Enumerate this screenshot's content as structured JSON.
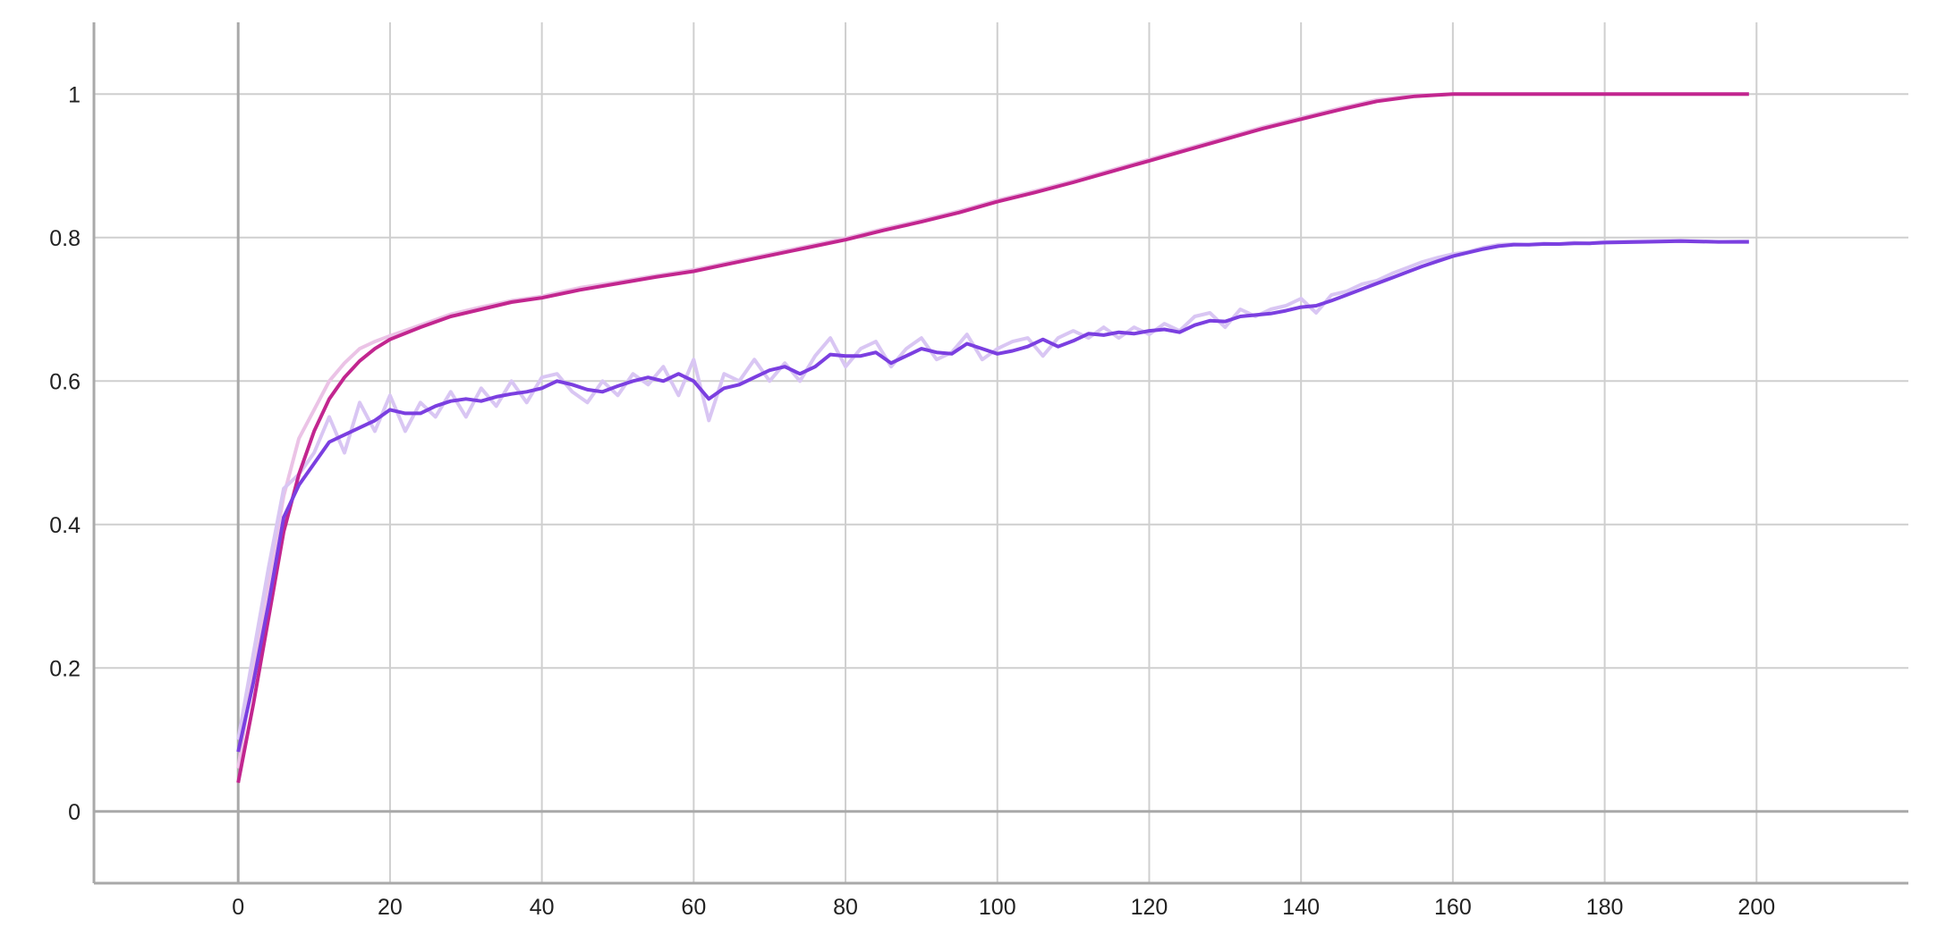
{
  "chart_data": {
    "type": "line",
    "title": "",
    "xlabel": "",
    "ylabel": "",
    "xlim": [
      -19,
      220
    ],
    "ylim": [
      -0.1,
      1.1
    ],
    "xticks": [
      0,
      20,
      40,
      60,
      80,
      100,
      120,
      140,
      160,
      180,
      200
    ],
    "xtick_labels": [
      "0",
      "20",
      "40",
      "60",
      "80",
      "100",
      "120",
      "140",
      "160",
      "180",
      "200"
    ],
    "yticks": [
      0,
      0.2,
      0.4,
      0.6,
      0.8,
      1
    ],
    "ytick_labels": [
      "0",
      "0.2",
      "0.4",
      "0.6",
      "0.8",
      "1"
    ],
    "grid": true,
    "legend": "none",
    "series": [
      {
        "color": "#c2268f",
        "raw_color": "#ebc3e6",
        "x": [
          0,
          2,
          4,
          6,
          8,
          10,
          12,
          14,
          16,
          18,
          20,
          24,
          28,
          32,
          36,
          40,
          45,
          50,
          55,
          60,
          65,
          70,
          75,
          80,
          85,
          90,
          95,
          100,
          105,
          110,
          115,
          120,
          125,
          130,
          135,
          140,
          145,
          150,
          155,
          160,
          165,
          170,
          180,
          190,
          199
        ],
        "y": [
          0.04,
          0.15,
          0.27,
          0.39,
          0.47,
          0.53,
          0.575,
          0.605,
          0.628,
          0.645,
          0.658,
          0.675,
          0.69,
          0.7,
          0.71,
          0.716,
          0.727,
          0.736,
          0.745,
          0.753,
          0.764,
          0.775,
          0.786,
          0.797,
          0.81,
          0.822,
          0.835,
          0.85,
          0.863,
          0.877,
          0.892,
          0.907,
          0.922,
          0.937,
          0.952,
          0.965,
          0.978,
          0.99,
          0.997,
          1.0,
          1.0,
          1.0,
          1.0,
          1.0,
          1.0
        ],
        "raw_y": [
          0.06,
          0.2,
          0.32,
          0.44,
          0.52,
          0.56,
          0.6,
          0.625,
          0.645,
          0.655,
          0.663,
          0.678,
          0.693,
          0.703,
          0.712,
          0.718,
          0.73,
          0.738,
          0.747,
          0.755,
          0.766,
          0.777,
          0.788,
          0.799,
          0.812,
          0.824,
          0.837,
          0.852,
          0.865,
          0.879,
          0.894,
          0.909,
          0.924,
          0.939,
          0.954,
          0.967,
          0.98,
          0.992,
          0.998,
          1.0,
          1.0,
          1.0,
          1.0,
          1.0,
          1.0
        ]
      },
      {
        "color": "#7b3fe0",
        "raw_color": "#d9c6f3",
        "x": [
          0,
          2,
          4,
          6,
          8,
          10,
          12,
          14,
          16,
          18,
          20,
          22,
          24,
          26,
          28,
          30,
          32,
          34,
          36,
          38,
          40,
          42,
          44,
          46,
          48,
          50,
          52,
          54,
          56,
          58,
          60,
          62,
          64,
          66,
          68,
          70,
          72,
          74,
          76,
          78,
          80,
          82,
          84,
          86,
          88,
          90,
          92,
          94,
          96,
          98,
          100,
          102,
          104,
          106,
          108,
          110,
          112,
          114,
          116,
          118,
          120,
          122,
          124,
          126,
          128,
          130,
          132,
          134,
          136,
          138,
          140,
          142,
          144,
          146,
          148,
          150,
          152,
          154,
          156,
          158,
          160,
          162,
          164,
          166,
          168,
          170,
          172,
          174,
          176,
          178,
          180,
          185,
          190,
          195,
          199
        ],
        "y": [
          0.083,
          0.18,
          0.29,
          0.41,
          0.455,
          0.485,
          0.515,
          0.525,
          0.535,
          0.545,
          0.56,
          0.555,
          0.555,
          0.565,
          0.572,
          0.575,
          0.572,
          0.578,
          0.582,
          0.585,
          0.59,
          0.6,
          0.595,
          0.588,
          0.585,
          0.593,
          0.6,
          0.605,
          0.6,
          0.61,
          0.6,
          0.575,
          0.59,
          0.595,
          0.605,
          0.615,
          0.62,
          0.61,
          0.62,
          0.637,
          0.635,
          0.635,
          0.64,
          0.625,
          0.635,
          0.645,
          0.64,
          0.638,
          0.652,
          0.645,
          0.638,
          0.642,
          0.648,
          0.658,
          0.648,
          0.656,
          0.666,
          0.664,
          0.668,
          0.666,
          0.67,
          0.672,
          0.668,
          0.678,
          0.684,
          0.683,
          0.69,
          0.692,
          0.694,
          0.698,
          0.703,
          0.705,
          0.712,
          0.72,
          0.728,
          0.736,
          0.744,
          0.752,
          0.76,
          0.767,
          0.774,
          0.779,
          0.784,
          0.788,
          0.79,
          0.79,
          0.791,
          0.791,
          0.792,
          0.792,
          0.793,
          0.794,
          0.795,
          0.794,
          0.794
        ],
        "raw_y": [
          0.1,
          0.22,
          0.34,
          0.45,
          0.47,
          0.5,
          0.55,
          0.5,
          0.57,
          0.53,
          0.58,
          0.53,
          0.57,
          0.55,
          0.585,
          0.55,
          0.59,
          0.565,
          0.6,
          0.57,
          0.605,
          0.61,
          0.585,
          0.57,
          0.6,
          0.58,
          0.61,
          0.595,
          0.62,
          0.58,
          0.63,
          0.545,
          0.61,
          0.6,
          0.63,
          0.6,
          0.625,
          0.6,
          0.635,
          0.66,
          0.62,
          0.645,
          0.655,
          0.62,
          0.645,
          0.66,
          0.63,
          0.64,
          0.665,
          0.63,
          0.645,
          0.655,
          0.66,
          0.635,
          0.66,
          0.67,
          0.66,
          0.675,
          0.66,
          0.675,
          0.665,
          0.68,
          0.67,
          0.69,
          0.695,
          0.675,
          0.7,
          0.69,
          0.7,
          0.705,
          0.715,
          0.695,
          0.72,
          0.725,
          0.735,
          0.74,
          0.75,
          0.758,
          0.766,
          0.772,
          0.777,
          0.78,
          0.786,
          0.79,
          0.791,
          0.79,
          0.792,
          0.791,
          0.793,
          0.792,
          0.794,
          0.795,
          0.796,
          0.794,
          0.795
        ]
      }
    ]
  }
}
